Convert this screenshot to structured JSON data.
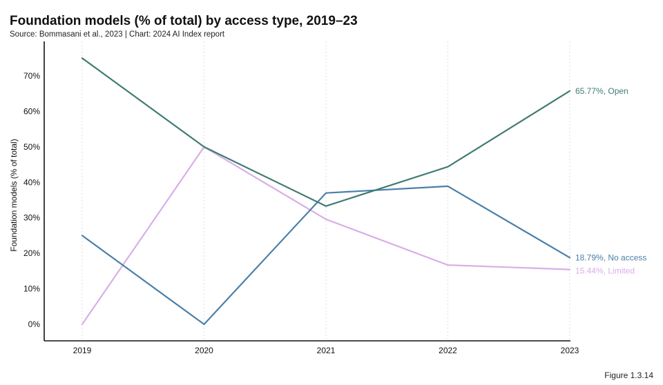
{
  "header": {
    "title": "Foundation models (% of total) by access type, 2019–23",
    "source": "Source: Bommasani et al., 2023 | Chart: 2024 AI Index report"
  },
  "footer": {
    "figure": "Figure 1.3.14"
  },
  "chart_data": {
    "type": "line",
    "title": "Foundation models (% of total) by access type, 2019–23",
    "xlabel": "",
    "ylabel": "Foundation models (% of total)",
    "x": [
      "2019",
      "2020",
      "2021",
      "2022",
      "2023"
    ],
    "ylim": [
      0,
      80
    ],
    "yticks": [
      0,
      10,
      20,
      30,
      40,
      50,
      60,
      70
    ],
    "ytick_labels": [
      "0%",
      "10%",
      "20%",
      "30%",
      "40%",
      "50%",
      "60%",
      "70%"
    ],
    "grid": "vertical dashed",
    "series": [
      {
        "name": "Open",
        "values": [
          75,
          50,
          33.3,
          44.4,
          65.77
        ],
        "color": "#3f7b73",
        "end_label": "65.77%, Open"
      },
      {
        "name": "No access",
        "values": [
          25,
          0,
          37,
          38.9,
          18.79
        ],
        "color": "#4a7fa8",
        "end_label": "18.79%, No access"
      },
      {
        "name": "Limited",
        "values": [
          0,
          50,
          29.6,
          16.7,
          15.44
        ],
        "color": "#d9aee8",
        "end_label": "15.44%, Limited"
      }
    ]
  }
}
